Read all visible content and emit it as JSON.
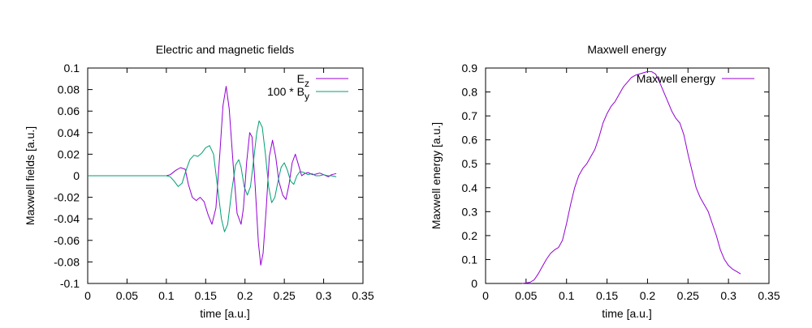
{
  "chart_data": [
    {
      "type": "line",
      "title": "Electric and magnetic fields",
      "xlabel": "time [a.u.]",
      "ylabel": "Maxwell fields [a.u.]",
      "xlim": [
        0,
        0.35
      ],
      "ylim": [
        -0.1,
        0.1
      ],
      "xticks": [
        "0",
        "0.05",
        "0.1",
        "0.15",
        "0.2",
        "0.25",
        "0.3",
        "0.35"
      ],
      "yticks": [
        "-0.1",
        "-0.08",
        "-0.06",
        "-0.04",
        "-0.02",
        "0",
        "0.02",
        "0.04",
        "0.06",
        "0.08",
        "0.1"
      ],
      "grid": false,
      "legend_position": "top-right",
      "legend": [
        {
          "prefix": "E",
          "sub": "z"
        },
        {
          "prefix": "100 * B",
          "sub": "y"
        }
      ],
      "series": [
        {
          "name": "Ez",
          "color": "#9400d3",
          "points": [
            [
              0,
              0
            ],
            [
              0.1,
              0
            ],
            [
              0.105,
              0.001
            ],
            [
              0.112,
              0.005
            ],
            [
              0.118,
              0.0075
            ],
            [
              0.124,
              0.006
            ],
            [
              0.128,
              -0.008
            ],
            [
              0.133,
              -0.02
            ],
            [
              0.138,
              -0.023
            ],
            [
              0.143,
              -0.02
            ],
            [
              0.148,
              -0.024
            ],
            [
              0.153,
              -0.036
            ],
            [
              0.158,
              -0.045
            ],
            [
              0.163,
              -0.03
            ],
            [
              0.168,
              0.02
            ],
            [
              0.172,
              0.065
            ],
            [
              0.176,
              0.083
            ],
            [
              0.18,
              0.062
            ],
            [
              0.185,
              0.01
            ],
            [
              0.19,
              -0.035
            ],
            [
              0.195,
              -0.045
            ],
            [
              0.198,
              -0.03
            ],
            [
              0.202,
              0.012
            ],
            [
              0.206,
              0.04
            ],
            [
              0.209,
              0.036
            ],
            [
              0.213,
              -0.01
            ],
            [
              0.217,
              -0.062
            ],
            [
              0.22,
              -0.083
            ],
            [
              0.223,
              -0.072
            ],
            [
              0.227,
              -0.03
            ],
            [
              0.231,
              0.018
            ],
            [
              0.235,
              0.033
            ],
            [
              0.239,
              0.018
            ],
            [
              0.243,
              -0.005
            ],
            [
              0.248,
              -0.018
            ],
            [
              0.252,
              -0.022
            ],
            [
              0.256,
              -0.008
            ],
            [
              0.26,
              0.012
            ],
            [
              0.264,
              0.02
            ],
            [
              0.268,
              0.01
            ],
            [
              0.272,
              0
            ],
            [
              0.276,
              0.002
            ],
            [
              0.28,
              0.003
            ],
            [
              0.286,
              0.001
            ],
            [
              0.29,
              0.0015
            ],
            [
              0.295,
              0.0025
            ],
            [
              0.3,
              0.001
            ],
            [
              0.306,
              -0.001
            ],
            [
              0.31,
              0.001
            ],
            [
              0.316,
              0.002
            ]
          ]
        },
        {
          "name": "100 * By",
          "color": "#009e73",
          "points": [
            [
              0,
              0
            ],
            [
              0.1,
              0
            ],
            [
              0.105,
              -0.001
            ],
            [
              0.11,
              -0.005
            ],
            [
              0.115,
              -0.01
            ],
            [
              0.12,
              -0.007
            ],
            [
              0.125,
              0.005
            ],
            [
              0.13,
              0.015
            ],
            [
              0.135,
              0.019
            ],
            [
              0.14,
              0.018
            ],
            [
              0.145,
              0.021
            ],
            [
              0.15,
              0.026
            ],
            [
              0.155,
              0.028
            ],
            [
              0.16,
              0.02
            ],
            [
              0.165,
              -0.01
            ],
            [
              0.17,
              -0.04
            ],
            [
              0.174,
              -0.052
            ],
            [
              0.178,
              -0.045
            ],
            [
              0.183,
              -0.015
            ],
            [
              0.188,
              0.01
            ],
            [
              0.192,
              0.015
            ],
            [
              0.195,
              0.008
            ],
            [
              0.199,
              -0.01
            ],
            [
              0.203,
              -0.018
            ],
            [
              0.207,
              -0.01
            ],
            [
              0.211,
              0.015
            ],
            [
              0.215,
              0.04
            ],
            [
              0.218,
              0.051
            ],
            [
              0.222,
              0.045
            ],
            [
              0.226,
              0.02
            ],
            [
              0.23,
              -0.01
            ],
            [
              0.234,
              -0.025
            ],
            [
              0.238,
              -0.02
            ],
            [
              0.242,
              -0.005
            ],
            [
              0.246,
              0.008
            ],
            [
              0.25,
              0.012
            ],
            [
              0.254,
              0.005
            ],
            [
              0.258,
              -0.005
            ],
            [
              0.262,
              -0.008
            ],
            [
              0.266,
              0
            ],
            [
              0.27,
              0.004
            ],
            [
              0.275,
              0.003
            ],
            [
              0.28,
              0.001
            ],
            [
              0.285,
              0.002
            ],
            [
              0.29,
              0
            ],
            [
              0.295,
              0
            ],
            [
              0.3,
              0.001
            ],
            [
              0.305,
              0
            ],
            [
              0.31,
              0
            ],
            [
              0.316,
              -0.001
            ]
          ]
        }
      ]
    },
    {
      "type": "line",
      "title": "Maxwell energy",
      "xlabel": "time [a.u.]",
      "ylabel": "Maxwell energy [a.u.]",
      "xlim": [
        0,
        0.35
      ],
      "ylim": [
        0,
        0.9
      ],
      "xticks": [
        "0",
        "0.05",
        "0.1",
        "0.15",
        "0.2",
        "0.25",
        "0.3",
        "0.35"
      ],
      "yticks": [
        "0",
        "0.1",
        "0.2",
        "0.3",
        "0.4",
        "0.5",
        "0.6",
        "0.7",
        "0.8",
        "0.9"
      ],
      "grid": false,
      "legend_position": "top-right",
      "legend": [
        {
          "prefix": "Maxwell energy",
          "sub": ""
        }
      ],
      "series": [
        {
          "name": "Maxwell energy",
          "color": "#9400d3",
          "points": [
            [
              0.045,
              0
            ],
            [
              0.05,
              0.002
            ],
            [
              0.055,
              0.005
            ],
            [
              0.06,
              0.015
            ],
            [
              0.065,
              0.04
            ],
            [
              0.07,
              0.07
            ],
            [
              0.075,
              0.1
            ],
            [
              0.08,
              0.125
            ],
            [
              0.085,
              0.14
            ],
            [
              0.09,
              0.15
            ],
            [
              0.095,
              0.18
            ],
            [
              0.1,
              0.25
            ],
            [
              0.105,
              0.33
            ],
            [
              0.11,
              0.4
            ],
            [
              0.115,
              0.45
            ],
            [
              0.12,
              0.48
            ],
            [
              0.125,
              0.5
            ],
            [
              0.13,
              0.53
            ],
            [
              0.135,
              0.56
            ],
            [
              0.14,
              0.61
            ],
            [
              0.145,
              0.67
            ],
            [
              0.15,
              0.71
            ],
            [
              0.155,
              0.74
            ],
            [
              0.16,
              0.76
            ],
            [
              0.165,
              0.79
            ],
            [
              0.17,
              0.82
            ],
            [
              0.175,
              0.84
            ],
            [
              0.18,
              0.86
            ],
            [
              0.185,
              0.87
            ],
            [
              0.19,
              0.875
            ],
            [
              0.195,
              0.88
            ],
            [
              0.2,
              0.885
            ],
            [
              0.205,
              0.885
            ],
            [
              0.21,
              0.875
            ],
            [
              0.215,
              0.84
            ],
            [
              0.22,
              0.8
            ],
            [
              0.225,
              0.76
            ],
            [
              0.23,
              0.72
            ],
            [
              0.235,
              0.69
            ],
            [
              0.24,
              0.67
            ],
            [
              0.245,
              0.62
            ],
            [
              0.25,
              0.54
            ],
            [
              0.255,
              0.47
            ],
            [
              0.26,
              0.4
            ],
            [
              0.265,
              0.36
            ],
            [
              0.27,
              0.33
            ],
            [
              0.275,
              0.3
            ],
            [
              0.28,
              0.25
            ],
            [
              0.285,
              0.2
            ],
            [
              0.29,
              0.14
            ],
            [
              0.295,
              0.1
            ],
            [
              0.3,
              0.075
            ],
            [
              0.305,
              0.06
            ],
            [
              0.31,
              0.05
            ],
            [
              0.315,
              0.04
            ]
          ]
        }
      ]
    }
  ]
}
